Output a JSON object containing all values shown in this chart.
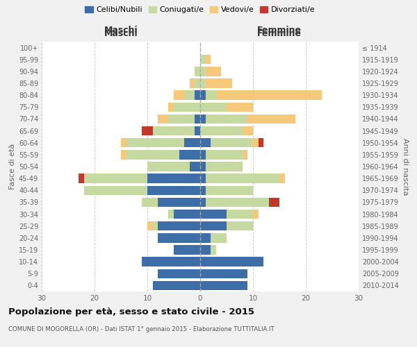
{
  "age_groups": [
    "0-4",
    "5-9",
    "10-14",
    "15-19",
    "20-24",
    "25-29",
    "30-34",
    "35-39",
    "40-44",
    "45-49",
    "50-54",
    "55-59",
    "60-64",
    "65-69",
    "70-74",
    "75-79",
    "80-84",
    "85-89",
    "90-94",
    "95-99",
    "100+"
  ],
  "birth_years": [
    "2010-2014",
    "2005-2009",
    "2000-2004",
    "1995-1999",
    "1990-1994",
    "1985-1989",
    "1980-1984",
    "1975-1979",
    "1970-1974",
    "1965-1969",
    "1960-1964",
    "1955-1959",
    "1950-1954",
    "1945-1949",
    "1940-1944",
    "1935-1939",
    "1930-1934",
    "1925-1929",
    "1920-1924",
    "1915-1919",
    "≤ 1914"
  ],
  "maschi": {
    "celibi": [
      9,
      8,
      11,
      5,
      8,
      8,
      5,
      8,
      10,
      10,
      2,
      4,
      3,
      1,
      1,
      0,
      1,
      0,
      0,
      0,
      0
    ],
    "coniugati": [
      0,
      0,
      0,
      0,
      0,
      1,
      1,
      3,
      12,
      12,
      8,
      10,
      11,
      8,
      5,
      5,
      2,
      1,
      1,
      0,
      0
    ],
    "vedovi": [
      0,
      0,
      0,
      0,
      0,
      1,
      0,
      0,
      0,
      0,
      0,
      1,
      1,
      0,
      2,
      1,
      2,
      1,
      0,
      0,
      0
    ],
    "divorziati": [
      0,
      0,
      0,
      0,
      0,
      0,
      0,
      0,
      0,
      1,
      0,
      0,
      0,
      2,
      0,
      0,
      0,
      0,
      0,
      0,
      0
    ]
  },
  "femmine": {
    "nubili": [
      9,
      9,
      12,
      2,
      2,
      5,
      5,
      1,
      1,
      1,
      1,
      1,
      2,
      0,
      1,
      0,
      1,
      0,
      0,
      0,
      0
    ],
    "coniugate": [
      0,
      0,
      0,
      1,
      3,
      5,
      5,
      12,
      9,
      14,
      7,
      7,
      8,
      8,
      8,
      5,
      2,
      1,
      1,
      1,
      0
    ],
    "vedove": [
      0,
      0,
      0,
      0,
      0,
      0,
      1,
      0,
      0,
      1,
      0,
      1,
      1,
      2,
      9,
      5,
      20,
      5,
      3,
      1,
      0
    ],
    "divorziate": [
      0,
      0,
      0,
      0,
      0,
      0,
      0,
      2,
      0,
      0,
      0,
      0,
      1,
      0,
      0,
      0,
      0,
      0,
      0,
      0,
      0
    ]
  },
  "colors": {
    "celibi": "#3d6ea8",
    "coniugati": "#c5d9a0",
    "vedovi": "#f5c87a",
    "divorziati": "#c0392b"
  },
  "xlim": 30,
  "title": "Popolazione per età, sesso e stato civile - 2015",
  "subtitle": "COMUNE DI MOGORELLA (OR) - Dati ISTAT 1° gennaio 2015 - Elaborazione TUTTITALIA.IT",
  "xlabel_left": "Maschi",
  "xlabel_right": "Femmine",
  "ylabel_left": "Fasce di età",
  "ylabel_right": "Anni di nascita",
  "legend_labels": [
    "Celibi/Nubili",
    "Coniugati/e",
    "Vedovi/e",
    "Divorziati/e"
  ],
  "bg_color": "#f0f0f0",
  "plot_bg_color": "#ffffff"
}
